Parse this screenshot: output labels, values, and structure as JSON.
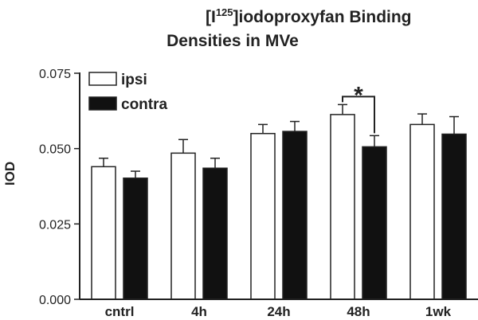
{
  "chart_data": {
    "type": "bar",
    "title_line1_pre": "[I",
    "title_superscript": "125",
    "title_line1_post": "]iodoproxyfan Binding",
    "title_line2": "Densities in MVe",
    "ylabel": "IOD",
    "xlabel": "",
    "ylim": [
      0,
      0.075
    ],
    "yticks": [
      "0.000",
      "0.025",
      "0.050",
      "0.075"
    ],
    "ytick_values": [
      0,
      0.025,
      0.05,
      0.075
    ],
    "categories": [
      "cntrl",
      "4h",
      "24h",
      "48h",
      "1wk"
    ],
    "series": [
      {
        "name": "ipsi",
        "color": "#ffffff",
        "values": [
          0.044,
          0.0485,
          0.055,
          0.0613,
          0.058
        ],
        "errors": [
          0.0028,
          0.0045,
          0.003,
          0.0033,
          0.0035
        ]
      },
      {
        "name": "contra",
        "color": "#111111",
        "values": [
          0.0402,
          0.0435,
          0.0557,
          0.0506,
          0.0548
        ],
        "errors": [
          0.0023,
          0.0033,
          0.0033,
          0.0037,
          0.0058
        ]
      }
    ],
    "legend_position": "top-left",
    "grid": false,
    "significance": {
      "category": "48h",
      "label": "*"
    }
  }
}
